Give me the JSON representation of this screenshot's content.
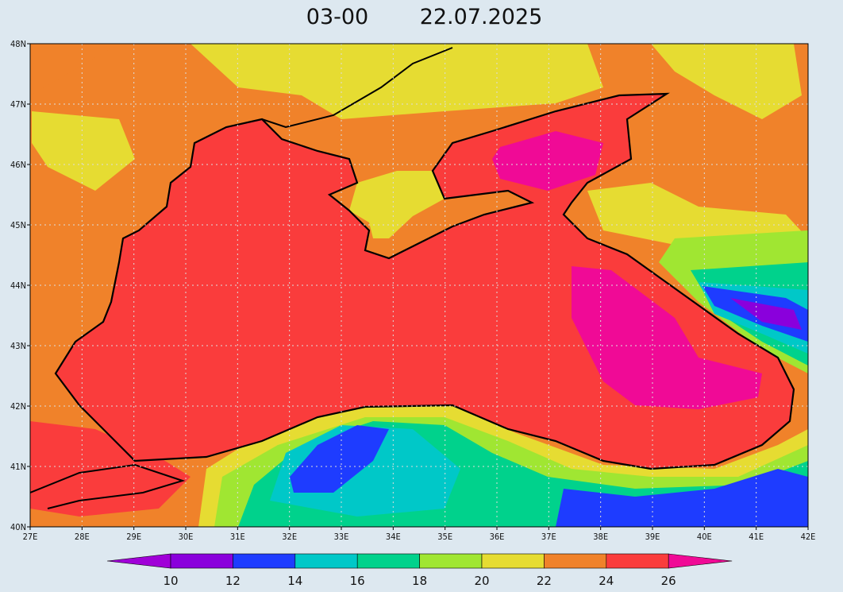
{
  "header": {
    "time": "03-00",
    "date": "22.07.2025"
  },
  "axes": {
    "lat_labels": [
      "48N",
      "47N",
      "46N",
      "45N",
      "44N",
      "43N",
      "42N",
      "41N",
      "40N"
    ],
    "lon_labels": [
      "27E",
      "28E",
      "29E",
      "30E",
      "31E",
      "32E",
      "33E",
      "34E",
      "35E",
      "36E",
      "37E",
      "38E",
      "39E",
      "40E",
      "41E",
      "42E"
    ]
  },
  "colorbar": {
    "labels": [
      10,
      12,
      14,
      16,
      18,
      20,
      22,
      24,
      26
    ],
    "colors": [
      "#a000d8",
      "#8a00dc",
      "#1e3cff",
      "#00c8c8",
      "#00d28c",
      "#a0e632",
      "#e6dc32",
      "#f0822a",
      "#fa3c3c",
      "#f00a96"
    ]
  }
}
